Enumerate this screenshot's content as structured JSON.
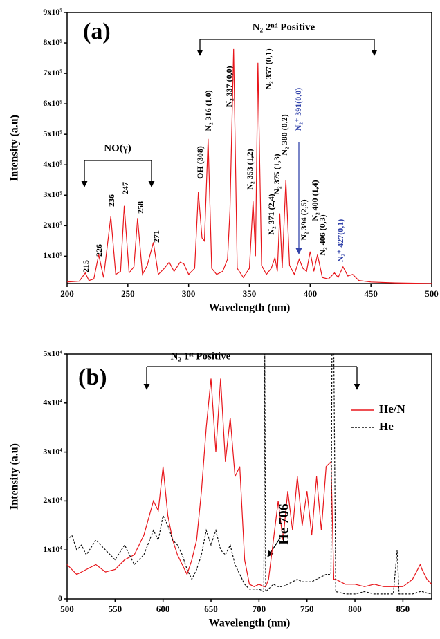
{
  "chart_data": [
    {
      "type": "line",
      "title": "(a)",
      "x_label": "Wavelength (nm)",
      "y_label": "Intensity (a.u)",
      "color": "#e8161b",
      "x": [
        200,
        210,
        215,
        218,
        222,
        226,
        230,
        236,
        240,
        244,
        247,
        251,
        255,
        258,
        262,
        266,
        271,
        275,
        280,
        284,
        288,
        293,
        296,
        300,
        305,
        308,
        311,
        313,
        316,
        319,
        323,
        328,
        332,
        334,
        337,
        340,
        345,
        350,
        353,
        355,
        357,
        360,
        364,
        368,
        371,
        373,
        375,
        377,
        380,
        383,
        387,
        391,
        394,
        397,
        400,
        403,
        406,
        410,
        415,
        420,
        423,
        427,
        431,
        435,
        440,
        450,
        470,
        500
      ],
      "values": [
        15000,
        18000,
        45000,
        20000,
        25000,
        105000,
        30000,
        230000,
        40000,
        50000,
        265000,
        45000,
        65000,
        225000,
        40000,
        70000,
        145000,
        40000,
        60000,
        80000,
        50000,
        80000,
        75000,
        40000,
        60000,
        310000,
        160000,
        150000,
        485000,
        60000,
        40000,
        50000,
        90000,
        250000,
        780000,
        60000,
        30000,
        60000,
        280000,
        100000,
        735000,
        70000,
        40000,
        60000,
        95000,
        50000,
        240000,
        60000,
        350000,
        70000,
        40000,
        90000,
        60000,
        50000,
        115000,
        50000,
        105000,
        30000,
        25000,
        45000,
        30000,
        65000,
        35000,
        40000,
        20000,
        15000,
        12000,
        10000
      ],
      "xlim": [
        200,
        500
      ],
      "ylim": [
        10000,
        900000
      ],
      "xticks": [
        200,
        250,
        300,
        350,
        400,
        450,
        500
      ],
      "yticks": [
        {
          "value": 100000,
          "label": "1x10⁵"
        },
        {
          "value": 200000,
          "label": "2x10⁵"
        },
        {
          "value": 300000,
          "label": "3x10⁵"
        },
        {
          "value": 400000,
          "label": "4x10⁵"
        },
        {
          "value": 500000,
          "label": "5x10⁵"
        },
        {
          "value": 600000,
          "label": "6x10⁵"
        },
        {
          "value": 700000,
          "label": "7x10⁵"
        },
        {
          "value": 800000,
          "label": "8x10⁵"
        },
        {
          "value": 900000,
          "label": "9x10⁵"
        }
      ],
      "annotations": [
        "N₂ 2ⁿᵈ Positive",
        "NO(γ)",
        "215",
        "226",
        "236",
        "247",
        "258",
        "271",
        "OH (308)",
        "N₂ 316 (1,0)",
        "N₂ 337 (0,0)",
        "N₂ 357 (0,1)",
        "N₂⁺ 391(0,0)",
        "N₂ 353 (1,2)",
        "N₂ 375 (1,3)",
        "N₂ 380 (0,2)",
        "N₂ 371 (2,4)",
        "N₂ 394 (2,5)",
        "N₂ 400 (1,4)",
        "N₂ 406 (0,3)",
        "N₂⁺ 427(0,1)"
      ]
    },
    {
      "type": "line",
      "title": "(b)",
      "x_label": "Wavelength (nm)",
      "y_label": "Intensity (a.u)",
      "legend": "upper right",
      "x": [
        500,
        505,
        510,
        515,
        520,
        530,
        540,
        550,
        560,
        570,
        580,
        590,
        595,
        600,
        605,
        610,
        615,
        620,
        625,
        630,
        635,
        640,
        645,
        650,
        655,
        660,
        665,
        670,
        675,
        680,
        685,
        690,
        695,
        700,
        705,
        706,
        707,
        710,
        715,
        720,
        725,
        730,
        735,
        740,
        745,
        750,
        755,
        760,
        765,
        770,
        775,
        776,
        778,
        780,
        790,
        800,
        810,
        820,
        830,
        840,
        844,
        846,
        850,
        860,
        868,
        870,
        875,
        880
      ],
      "series": [
        {
          "name": "He/N",
          "color": "#e8161b",
          "dash": false,
          "values": [
            7000,
            6000,
            5000,
            5500,
            6000,
            7000,
            5500,
            6000,
            8000,
            9000,
            13000,
            20000,
            18000,
            27000,
            17000,
            12000,
            9000,
            7000,
            5000,
            8000,
            12000,
            22000,
            35000,
            45000,
            30000,
            45000,
            28000,
            37000,
            25000,
            27000,
            8000,
            3000,
            2500,
            3000,
            2500,
            2500,
            2500,
            4000,
            12000,
            20000,
            12000,
            22000,
            14000,
            25000,
            15000,
            22000,
            13000,
            25000,
            14000,
            27000,
            28000,
            20000,
            4000,
            4000,
            3000,
            3000,
            2500,
            3000,
            2500,
            2500,
            2500,
            2500,
            2500,
            4000,
            7000,
            6000,
            4000,
            3000
          ]
        },
        {
          "name": "He",
          "color": "#111111",
          "dash": true,
          "values": [
            12000,
            13000,
            10000,
            11000,
            9000,
            12000,
            10000,
            8000,
            11000,
            7000,
            9000,
            14000,
            12000,
            17000,
            15000,
            12000,
            11000,
            9000,
            6000,
            4000,
            6000,
            9000,
            14000,
            11000,
            14000,
            10000,
            9000,
            11000,
            7000,
            5000,
            3000,
            2000,
            2000,
            2000,
            1500,
            50000,
            1500,
            2000,
            3000,
            2500,
            2500,
            3000,
            3500,
            4000,
            3500,
            3500,
            3500,
            4000,
            4500,
            5000,
            5000,
            50000,
            50000,
            1500,
            1000,
            1000,
            1500,
            1000,
            1000,
            1000,
            10000,
            1000,
            1000,
            1000,
            1500,
            1500,
            1200,
            1000
          ]
        }
      ],
      "xlim": [
        500,
        880
      ],
      "ylim": [
        0,
        50000
      ],
      "xticks": [
        500,
        550,
        600,
        650,
        700,
        750,
        800,
        850
      ],
      "yticks": [
        0,
        {
          "value": 10000,
          "label": "1x10⁴"
        },
        {
          "value": 20000,
          "label": "2x10⁴"
        },
        {
          "value": 30000,
          "label": "3x10⁴"
        },
        {
          "value": 40000,
          "label": "4x10⁴"
        },
        {
          "value": 50000,
          "label": "5x10⁴"
        }
      ],
      "annotations": [
        "N₂ 1ˢᵗ Positive",
        "He 706"
      ]
    }
  ]
}
